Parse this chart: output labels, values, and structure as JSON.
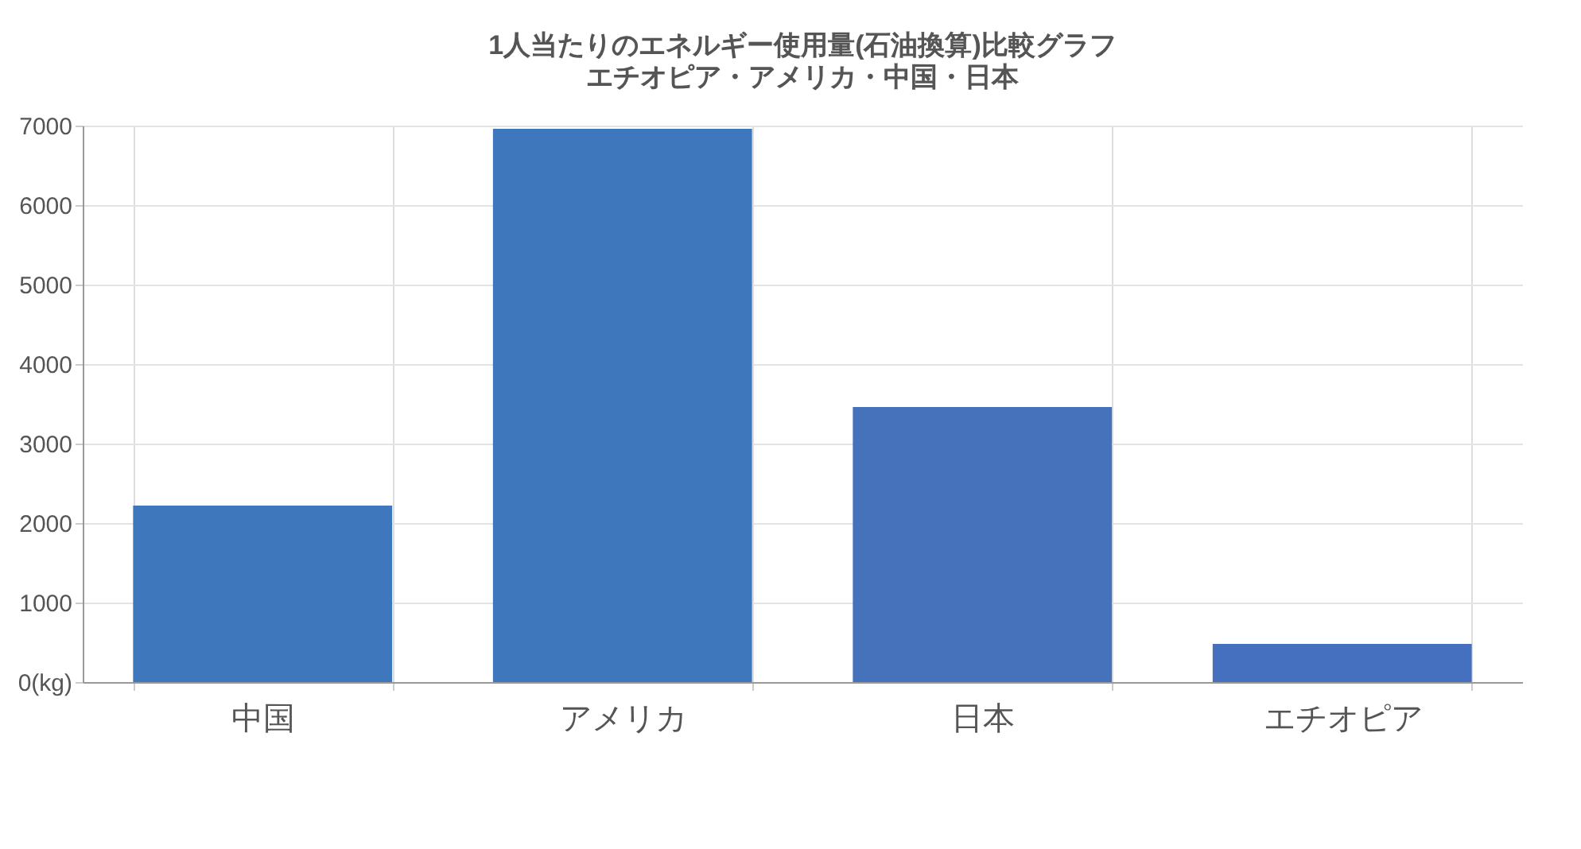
{
  "chart_data": {
    "type": "bar",
    "title": "1人当たりのエネルギー使用量(石油換算)比較グラフ",
    "subtitle": "エチオピア・アメリカ・中国・日本",
    "categories": [
      "中国",
      "アメリカ",
      "日本",
      "エチオピア"
    ],
    "values": [
      2220,
      6960,
      3460,
      480
    ],
    "colors": [
      "#3f77bc",
      "#3f77bc",
      "#4672bb",
      "#4570c0"
    ],
    "ylim": [
      0,
      7000
    ],
    "yticks": [
      {
        "value": 0,
        "label": "0(kg)"
      },
      1000,
      2000,
      3000,
      4000,
      5000,
      6000,
      7000
    ],
    "grid": true
  }
}
